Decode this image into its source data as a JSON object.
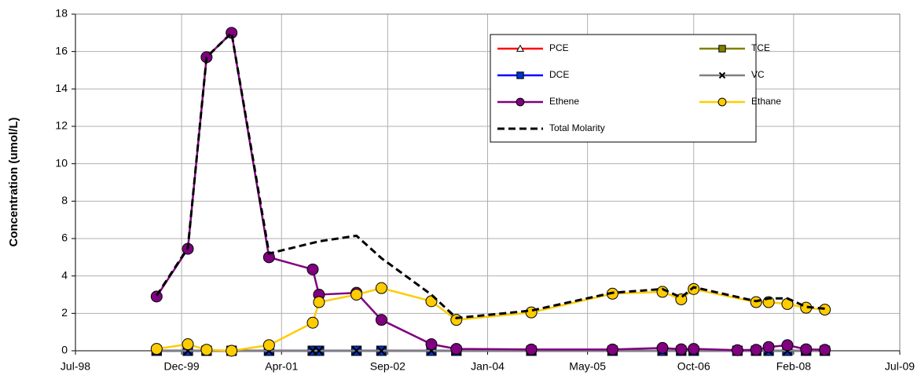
{
  "chart_data": {
    "type": "line",
    "ylabel": "Concentration (umol/L)",
    "xlim": [
      "Jul-98",
      "Jul-09"
    ],
    "xticks": [
      "Jul-98",
      "Dec-99",
      "Apr-01",
      "Sep-02",
      "Jan-04",
      "May-05",
      "Oct-06",
      "Feb-08",
      "Jul-09"
    ],
    "ylim": [
      0,
      18
    ],
    "yticks": [
      0,
      2,
      4,
      6,
      8,
      10,
      12,
      14,
      16,
      18
    ],
    "grid": true,
    "legend": "upper right",
    "series": [
      {
        "name": "PCE",
        "color": "#ff0000",
        "marker": "triangle",
        "marker_fill": "#ffffff",
        "x": [
          "Aug-99",
          "Jan-00",
          "Apr-00",
          "Aug-00",
          "Feb-01",
          "Sep-01",
          "Oct-01",
          "Apr-02",
          "Aug-02",
          "Apr-03",
          "Aug-03",
          "Aug-04",
          "Sep-05",
          "May-06",
          "Aug-06",
          "Oct-06",
          "May-07",
          "Aug-07",
          "Oct-07",
          "Jan-08",
          "Apr-08",
          "Jul-08"
        ],
        "values": [
          0,
          0,
          0,
          0,
          0,
          0,
          0,
          0,
          0,
          0,
          0,
          0,
          0,
          0,
          0,
          0,
          0,
          0,
          0,
          0,
          0,
          0
        ]
      },
      {
        "name": "TCE",
        "color": "#808000",
        "marker": "square",
        "marker_fill": "#808000",
        "x": [
          "Aug-99",
          "Jan-00",
          "Apr-00",
          "Aug-00",
          "Feb-01",
          "Sep-01",
          "Oct-01",
          "Apr-02",
          "Aug-02",
          "Apr-03",
          "Aug-03",
          "Aug-04",
          "Sep-05",
          "May-06",
          "Aug-06",
          "Oct-06",
          "May-07",
          "Aug-07",
          "Oct-07",
          "Jan-08",
          "Apr-08",
          "Jul-08"
        ],
        "values": [
          0,
          0,
          0,
          0,
          0,
          0,
          0,
          0,
          0,
          0,
          0,
          0,
          0,
          0,
          0,
          0,
          0,
          0,
          0,
          0,
          0,
          0
        ]
      },
      {
        "name": "DCE",
        "color": "#0000ff",
        "marker": "square",
        "marker_fill": "#0033cc",
        "x": [
          "Aug-99",
          "Jan-00",
          "Apr-00",
          "Aug-00",
          "Feb-01",
          "Sep-01",
          "Oct-01",
          "Apr-02",
          "Aug-02",
          "Apr-03",
          "Aug-03",
          "Aug-04",
          "Sep-05",
          "May-06",
          "Aug-06",
          "Oct-06",
          "May-07",
          "Aug-07",
          "Oct-07",
          "Jan-08",
          "Apr-08",
          "Jul-08"
        ],
        "values": [
          0,
          0,
          0,
          0,
          0,
          0,
          0,
          0,
          0,
          0,
          0,
          0,
          0,
          0,
          0,
          0,
          0,
          0,
          0,
          0,
          0,
          0
        ]
      },
      {
        "name": "VC",
        "color": "#808080",
        "marker": "x",
        "marker_fill": "#000000",
        "x": [
          "Aug-99",
          "Jan-00",
          "Apr-00",
          "Aug-00",
          "Feb-01",
          "Sep-01",
          "Oct-01",
          "Apr-02",
          "Aug-02",
          "Apr-03",
          "Aug-03",
          "Aug-04",
          "Sep-05",
          "May-06",
          "Aug-06",
          "Oct-06",
          "May-07",
          "Aug-07",
          "Oct-07",
          "Jan-08",
          "Apr-08",
          "Jul-08"
        ],
        "values": [
          0,
          0,
          0,
          0,
          0,
          0,
          0,
          0,
          0,
          0,
          0,
          0,
          0,
          0,
          0,
          0,
          0,
          0,
          0,
          0,
          0,
          0
        ]
      },
      {
        "name": "Ethene",
        "color": "#800080",
        "marker": "circle",
        "marker_fill": "#800080",
        "x": [
          "Aug-99",
          "Jan-00",
          "Apr-00",
          "Aug-00",
          "Feb-01",
          "Sep-01",
          "Oct-01",
          "Apr-02",
          "Aug-02",
          "Apr-03",
          "Aug-03",
          "Aug-04",
          "Sep-05",
          "May-06",
          "Aug-06",
          "Oct-06",
          "May-07",
          "Aug-07",
          "Oct-07",
          "Jan-08",
          "Apr-08",
          "Jul-08"
        ],
        "values": [
          2.9,
          5.45,
          15.7,
          17.0,
          5.0,
          4.35,
          3.0,
          3.1,
          1.65,
          0.35,
          0.1,
          0.07,
          0.07,
          0.15,
          0.08,
          0.1,
          0.03,
          0.05,
          0.2,
          0.3,
          0.08,
          0.05
        ]
      },
      {
        "name": "Ethane",
        "color": "#ffcc00",
        "marker": "circle",
        "marker_fill": "#ffcc00",
        "x": [
          "Aug-99",
          "Jan-00",
          "Apr-00",
          "Aug-00",
          "Feb-01",
          "Sep-01",
          "Oct-01",
          "Apr-02",
          "Aug-02",
          "Apr-03",
          "Aug-03",
          "Aug-04",
          "Sep-05",
          "May-06",
          "Aug-06",
          "Oct-06",
          "Aug-07",
          "Oct-07",
          "Jan-08",
          "Apr-08",
          "Jul-08"
        ],
        "values": [
          0.1,
          0.35,
          0.05,
          0.0,
          0.3,
          1.5,
          2.6,
          3.0,
          3.35,
          2.65,
          1.65,
          2.05,
          3.05,
          3.15,
          2.75,
          3.3,
          2.6,
          2.6,
          2.5,
          2.3,
          2.2
        ]
      },
      {
        "name": "Total Molarity",
        "color": "#000000",
        "marker": "none",
        "dash": true,
        "x": [
          "Aug-99",
          "Jan-00",
          "Apr-00",
          "Aug-00",
          "Feb-01",
          "Oct-01",
          "Apr-02",
          "Aug-02",
          "Apr-03",
          "Aug-03",
          "Aug-04",
          "Sep-05",
          "May-06",
          "Aug-06",
          "Oct-06",
          "Aug-07",
          "Oct-07",
          "Jan-08",
          "Apr-08",
          "Jul-08"
        ],
        "values": [
          2.95,
          5.5,
          15.7,
          17.0,
          5.2,
          5.85,
          6.15,
          4.95,
          3.0,
          1.75,
          2.15,
          3.1,
          3.3,
          2.85,
          3.4,
          2.65,
          2.8,
          2.8,
          2.35,
          2.25
        ]
      }
    ]
  }
}
